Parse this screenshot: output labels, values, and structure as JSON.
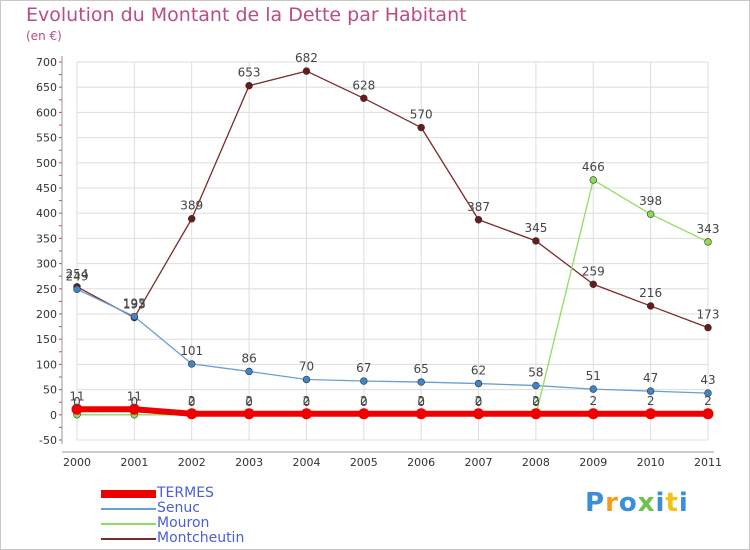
{
  "title": "Evolution du Montant de la Dette par Habitant",
  "subtitle": "(en €)",
  "logo_text": "Proxiti",
  "colors": {
    "title": "#b94d84",
    "legend_text": "#4a5fd6",
    "axis_text": "#333333",
    "grid": "#dddddd"
  },
  "chart_data": {
    "type": "line",
    "title": "Evolution du Montant de la Dette par Habitant",
    "subtitle": "(en €)",
    "xlabel": "",
    "ylabel": "",
    "ylim": [
      -50,
      700
    ],
    "ytick_step": 50,
    "grid": true,
    "legend_position": "bottom-left",
    "x": [
      2000,
      2001,
      2002,
      2003,
      2004,
      2005,
      2006,
      2007,
      2008,
      2009,
      2010,
      2011
    ],
    "series": [
      {
        "name": "Montcheutin",
        "color": "#7b2b2b",
        "marker": "#6b1a1a",
        "values": [
          254,
          193,
          389,
          653,
          682,
          628,
          570,
          387,
          345,
          259,
          216,
          173
        ],
        "labels": [
          "254",
          "193",
          "389",
          "653",
          "682",
          "628",
          "570",
          "387",
          "345",
          "259",
          "216",
          "173"
        ]
      },
      {
        "name": "Senuc",
        "color": "#6a9fd0",
        "marker": "#3f86c9",
        "values": [
          249,
          195,
          101,
          86,
          70,
          67,
          65,
          62,
          58,
          51,
          47,
          43
        ],
        "labels": [
          "249",
          "195",
          "101",
          "86",
          "70",
          "67",
          "65",
          "62",
          "58",
          "51",
          "47",
          "43"
        ]
      },
      {
        "name": "Mouron",
        "color": "#90dd62",
        "marker": "#8ede55",
        "values": [
          0,
          0,
          0,
          0,
          0,
          0,
          0,
          0,
          0,
          466,
          398,
          343
        ],
        "labels": [
          "0",
          "0",
          "0",
          "0",
          "0",
          "0",
          "0",
          "0",
          "0",
          "466",
          "398",
          "343"
        ]
      },
      {
        "name": "TERMES",
        "color": "#ee0000",
        "marker": "#ee0000",
        "values": [
          11,
          11,
          2,
          2,
          2,
          2,
          2,
          2,
          2,
          2,
          2,
          2
        ],
        "labels": [
          "11",
          "11",
          "2",
          "2",
          "2",
          "2",
          "2",
          "2",
          "2",
          "2",
          "2",
          "2"
        ]
      }
    ],
    "legend": [
      "TERMES",
      "Senuc",
      "Mouron",
      "Montcheutin"
    ]
  }
}
